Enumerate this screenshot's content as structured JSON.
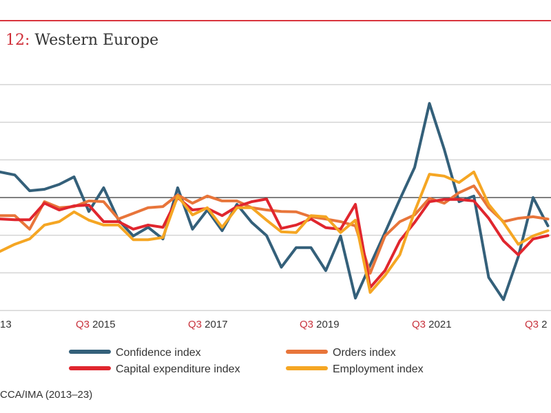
{
  "header": {
    "title_number": "12:",
    "title_text": "Western Europe"
  },
  "source": "CCA/IMA (2013–23)",
  "colors": {
    "accent": "#d9343c",
    "confidence": "#34607a",
    "orders": "#e8753a",
    "capex": "#e0262e",
    "employment": "#f5a623"
  },
  "chart_data": {
    "type": "line",
    "title": "Western Europe",
    "xlabel": "",
    "ylabel": "",
    "ylim": [
      -30,
      30
    ],
    "grid": true,
    "legend_placement": "bottom",
    "x_tick_labels": [
      {
        "q": "",
        "year": "13"
      },
      {
        "q": "Q3",
        "year": " 2015"
      },
      {
        "q": "Q3",
        "year": " 2017"
      },
      {
        "q": "Q3",
        "year": " 2019"
      },
      {
        "q": "Q3",
        "year": " 2021"
      },
      {
        "q": "Q3",
        "year": " 2"
      }
    ],
    "x": [
      "Q2 2014",
      "Q3 2014",
      "Q4 2014",
      "Q1 2015",
      "Q2 2015",
      "Q3 2015",
      "Q4 2015",
      "Q1 2016",
      "Q2 2016",
      "Q3 2016",
      "Q4 2016",
      "Q1 2017",
      "Q2 2017",
      "Q3 2017",
      "Q4 2017",
      "Q1 2018",
      "Q2 2018",
      "Q3 2018",
      "Q4 2018",
      "Q1 2019",
      "Q2 2019",
      "Q3 2019",
      "Q4 2019",
      "Q1 2020",
      "Q2 2020",
      "Q3 2020",
      "Q4 2020",
      "Q1 2021",
      "Q2 2021",
      "Q3 2021",
      "Q4 2021",
      "Q1 2022",
      "Q2 2022",
      "Q3 2022",
      "Q4 2022",
      "Q1 2023",
      "Q2 2023",
      "Q3 2023"
    ],
    "series": [
      {
        "name": "Confidence index",
        "color": "#34607a",
        "values": [
          6.8,
          6.0,
          1.8,
          2.2,
          3.5,
          5.5,
          -3.7,
          2.6,
          -6.0,
          -10.2,
          -7.9,
          -11.0,
          2.6,
          -8.4,
          -3.3,
          -8.8,
          -1.8,
          -6.6,
          -10.1,
          -18.5,
          -13.3,
          -13.3,
          -19.4,
          -10.2,
          -26.7,
          -17.9,
          -9.3,
          -0.5,
          8.0,
          25.0,
          12.8,
          -1.1,
          0.4,
          -21.2,
          -27.1,
          -15.7,
          0.0,
          -7.5
        ]
      },
      {
        "name": "Orders index",
        "color": "#e8753a",
        "values": [
          -4.8,
          -4.8,
          -8.4,
          -1.1,
          -2.7,
          -2.4,
          -0.9,
          -1.1,
          -5.7,
          -4.2,
          -2.7,
          -2.4,
          0.7,
          -1.5,
          0.4,
          -0.9,
          -0.9,
          -2.7,
          -3.3,
          -3.7,
          -3.8,
          -5.1,
          -5.7,
          -6.4,
          -7.5,
          -20.1,
          -10.2,
          -6.4,
          -4.6,
          -0.2,
          -1.5,
          1.3,
          3.1,
          -2.7,
          -6.4,
          -5.5,
          -5.1,
          -5.7
        ]
      },
      {
        "name": "Capital expenditure index",
        "color": "#e0262e",
        "values": [
          -5.7,
          -5.9,
          -5.9,
          -1.5,
          -3.3,
          -2.2,
          -2.0,
          -6.4,
          -6.4,
          -8.4,
          -7.3,
          -7.9,
          0.0,
          -3.3,
          -2.9,
          -4.8,
          -2.4,
          -1.1,
          -0.4,
          -8.2,
          -7.3,
          -5.7,
          -8.0,
          -8.4,
          -1.8,
          -23.9,
          -19.4,
          -11.5,
          -6.6,
          -1.1,
          -0.5,
          -0.5,
          -0.9,
          -5.5,
          -11.5,
          -15.2,
          -11.0,
          -10.1
        ]
      },
      {
        "name": "Employment index",
        "color": "#f5a623",
        "values": [
          -14.3,
          -12.4,
          -11.0,
          -7.3,
          -6.4,
          -3.8,
          -6.0,
          -7.3,
          -7.3,
          -11.2,
          -11.2,
          -10.6,
          0.4,
          -4.6,
          -2.7,
          -7.9,
          -2.7,
          -2.7,
          -6.0,
          -9.1,
          -9.3,
          -4.8,
          -5.1,
          -9.3,
          -6.0,
          -25.2,
          -20.7,
          -15.2,
          -3.7,
          6.2,
          5.7,
          4.0,
          6.8,
          -1.8,
          -6.6,
          -12.4,
          -10.2,
          -8.8
        ]
      }
    ]
  }
}
